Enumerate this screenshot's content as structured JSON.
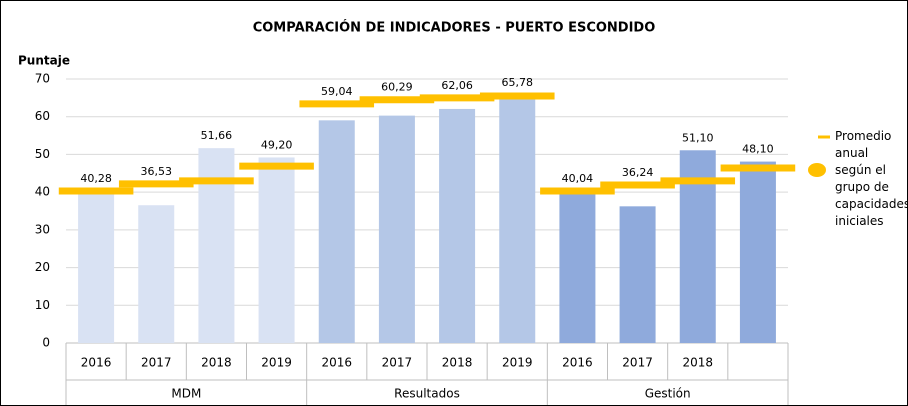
{
  "chart_data": {
    "type": "bar",
    "title": "COMPARACIÓN DE INDICADORES - PUERTO ESCONDIDO",
    "y_label": "Puntaje",
    "groups": [
      {
        "name": "MDM",
        "categories": [
          "2016",
          "2017",
          "2018",
          "2019"
        ],
        "color": "#d9e2f3"
      },
      {
        "name": "Resultados",
        "categories": [
          "2016",
          "2017",
          "2018",
          "2019"
        ],
        "color": "#b4c7e7"
      },
      {
        "name": "Gestión",
        "categories": [
          "2016",
          "2017",
          "2018",
          null
        ],
        "color": "#8faadc"
      }
    ],
    "values": [
      40.28,
      36.53,
      51.66,
      49.2,
      59.04,
      60.29,
      62.06,
      65.78,
      40.04,
      36.24,
      51.1,
      48.1
    ],
    "value_labels": [
      "40,28",
      "36,53",
      "51,66",
      "49,20",
      "59,04",
      "60,29",
      "62,06",
      "65,78",
      "40,04",
      "36,24",
      "51,10",
      "48,10"
    ],
    "series": [
      {
        "name": "Promedio anual según el grupo de capacidades iniciales",
        "color": "#ffc000",
        "values": [
          40.3,
          42.2,
          43.0,
          46.9,
          63.4,
          64.5,
          65.0,
          65.5,
          40.3,
          41.9,
          43.0,
          46.4
        ]
      }
    ],
    "ylim": [
      0,
      70
    ],
    "yticks": [
      0,
      10,
      20,
      30,
      40,
      50,
      60,
      70
    ],
    "grid": true,
    "legend": "right"
  }
}
